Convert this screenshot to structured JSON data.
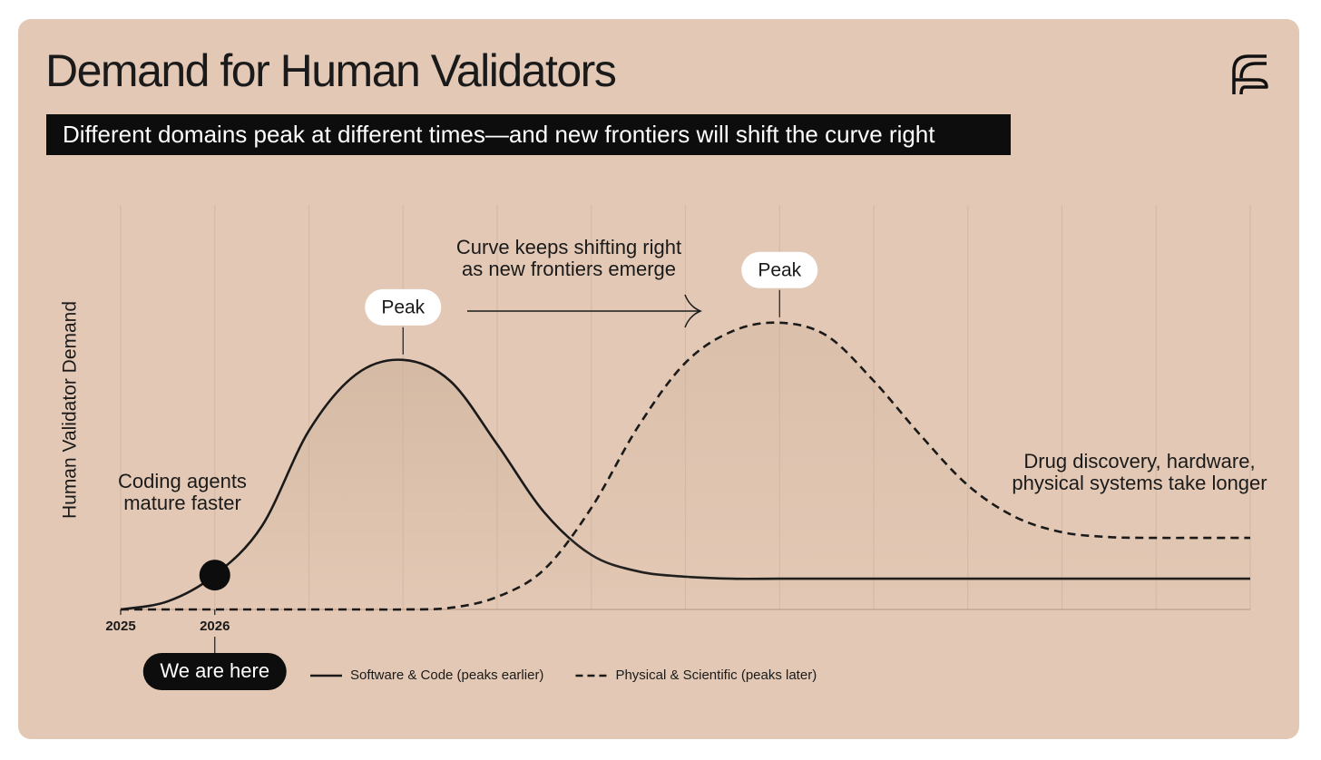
{
  "chart_data": {
    "type": "line",
    "title": "Demand for Human Validators",
    "subtitle": "Different domains peak at different times—and new frontiers will shift the curve right",
    "y_label": "Human Validator Demand",
    "x": [
      2025,
      2025.5,
      2026,
      2026.5,
      2027,
      2027.5,
      2028,
      2028.5,
      2029,
      2029.5,
      2030,
      2030.5,
      2031,
      2031.5,
      2032,
      2032.5,
      2033,
      2033.5,
      2034,
      2034.5,
      2035,
      2035.5,
      2036,
      2036.5,
      2037
    ],
    "xlim": [
      2025,
      2037
    ],
    "xticks": [
      2025,
      2026
    ],
    "ylim": [
      0,
      100
    ],
    "grid": true,
    "series": [
      {
        "name": "Software & Code (peaks earlier)",
        "color": "#1a1a1a",
        "dash": false,
        "values": [
          0,
          2.0,
          8.5,
          20.6,
          44.2,
          58.1,
          61.7,
          56.5,
          40.8,
          24.0,
          13.5,
          9.4,
          8.1,
          7.6,
          7.6,
          7.6,
          7.6,
          7.6,
          7.6,
          7.6,
          7.6,
          7.6,
          7.6,
          7.6,
          7.6
        ]
      },
      {
        "name": "Physical & Scientific (peaks later)",
        "color": "#1a1a1a",
        "dash": true,
        "values": [
          0,
          0,
          0,
          0,
          0,
          0,
          0,
          0.4,
          3.1,
          9.9,
          25.1,
          45.3,
          61.0,
          68.8,
          70.9,
          67.7,
          56.5,
          43.0,
          30.7,
          22.9,
          19.1,
          17.9,
          17.7,
          17.7,
          17.7
        ]
      }
    ],
    "annotations": {
      "peak": "Peak",
      "shift": [
        "Curve keeps shifting right",
        "as new frontiers emerge"
      ],
      "coding": [
        "Coding agents",
        "mature faster"
      ],
      "physical": [
        "Drug discovery, hardware,",
        "physical systems take longer"
      ],
      "here": "We are here"
    }
  }
}
